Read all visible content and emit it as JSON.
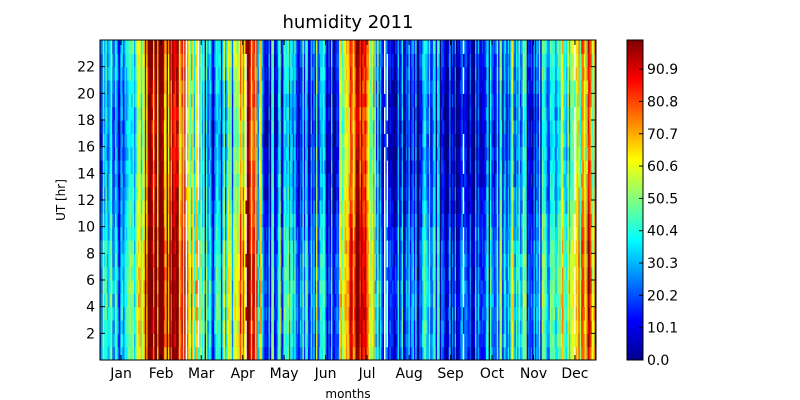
{
  "chart_data": {
    "type": "heatmap",
    "title": "humidity 2011",
    "xlabel": "months",
    "ylabel": "UT [hr]",
    "x_categories": [
      "Jan",
      "Feb",
      "Mar",
      "Apr",
      "May",
      "Jun",
      "Jul",
      "Aug",
      "Sep",
      "Oct",
      "Nov",
      "Dec"
    ],
    "xlim_days": [
      0,
      365
    ],
    "ylim": [
      0,
      24
    ],
    "y_ticks": [
      2,
      4,
      6,
      8,
      10,
      12,
      14,
      16,
      18,
      20,
      22
    ],
    "colormap": "jet",
    "colorbar": {
      "min": 0.0,
      "max": 100.0,
      "ticks": [
        "0.0",
        "10.1",
        "20.2",
        "30.3",
        "40.4",
        "50.5",
        "60.6",
        "70.7",
        "80.8",
        "90.9"
      ]
    },
    "grid": false,
    "values_by_period": [
      {
        "period": "Jan 1-8",
        "level": 42
      },
      {
        "period": "Jan 9-20",
        "level": 25
      },
      {
        "period": "Jan 21-31",
        "level": 30
      },
      {
        "period": "Feb 1-10",
        "level": 92
      },
      {
        "period": "Feb 11-20",
        "level": 82
      },
      {
        "period": "Feb 21-28",
        "level": 70
      },
      {
        "period": "Mar 1-10",
        "level": 40
      },
      {
        "period": "Mar 11-20",
        "level": 20
      },
      {
        "period": "Mar 21-31",
        "level": 45
      },
      {
        "period": "Apr 1-10",
        "level": 85
      },
      {
        "period": "Apr 11-20",
        "level": 25
      },
      {
        "period": "Apr 21-30",
        "level": 35
      },
      {
        "period": "May 1-10",
        "level": 20
      },
      {
        "period": "May 11-20",
        "level": 35
      },
      {
        "period": "May 21-31",
        "level": 15
      },
      {
        "period": "Jun 1-10",
        "level": 70
      },
      {
        "period": "Jun 11-20",
        "level": 88
      },
      {
        "period": "Jun 21-30",
        "level": 20
      },
      {
        "period": "Jul 1-15",
        "level": 15
      },
      {
        "period": "Jul 16-31",
        "level": 20
      },
      {
        "period": "Aug 1-15",
        "level": 25
      },
      {
        "period": "Aug 16-31",
        "level": 18
      },
      {
        "period": "Sep 1-15",
        "level": 22
      },
      {
        "period": "Sep 16-30",
        "level": 15
      },
      {
        "period": "Oct 1-15",
        "level": 25
      },
      {
        "period": "Oct 16-31",
        "level": 40
      },
      {
        "period": "Nov 1-15",
        "level": 25
      },
      {
        "period": "Nov 16-30",
        "level": 30
      },
      {
        "period": "Dec 1-15",
        "level": 45
      },
      {
        "period": "Dec 16-31",
        "level": 70
      }
    ]
  }
}
